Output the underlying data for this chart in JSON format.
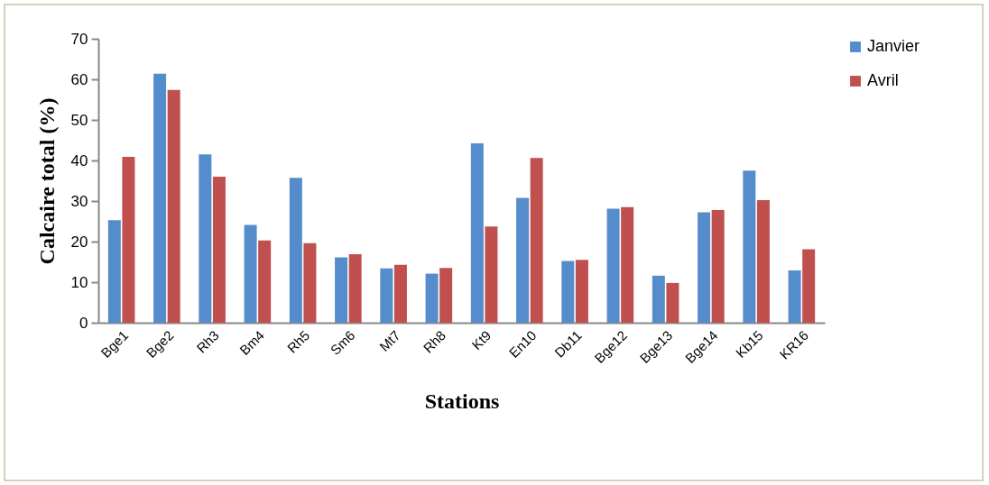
{
  "chart_data": {
    "type": "bar",
    "xlabel": "Stations",
    "ylabel": "Calcaire total (%)",
    "categories": [
      "Bge1",
      "Bge2",
      "Rh3",
      "Bm4",
      "Rh5",
      "Sm6",
      "Mt7",
      "Rh8",
      "Kt9",
      "En10",
      "Db11",
      "Bge12",
      "Bge13",
      "Bge14",
      "Kb15",
      "KR16"
    ],
    "series": [
      {
        "name": "Janvier",
        "color": "#558ccc",
        "values": [
          25.3,
          61.4,
          41.5,
          24.1,
          35.7,
          16.1,
          13.4,
          12.1,
          44.2,
          30.8,
          15.2,
          28.1,
          11.6,
          27.2,
          37.5,
          12.9
        ]
      },
      {
        "name": "Avril",
        "color": "#c0504d",
        "values": [
          40.9,
          57.4,
          36.0,
          20.3,
          19.6,
          16.9,
          14.3,
          13.5,
          23.7,
          40.6,
          15.5,
          28.5,
          9.8,
          27.8,
          30.2,
          18.1
        ]
      }
    ],
    "ylim": [
      0,
      70
    ],
    "yticks": [
      0,
      10,
      20,
      30,
      40,
      50,
      60,
      70
    ],
    "grid": false,
    "legend": "right"
  }
}
